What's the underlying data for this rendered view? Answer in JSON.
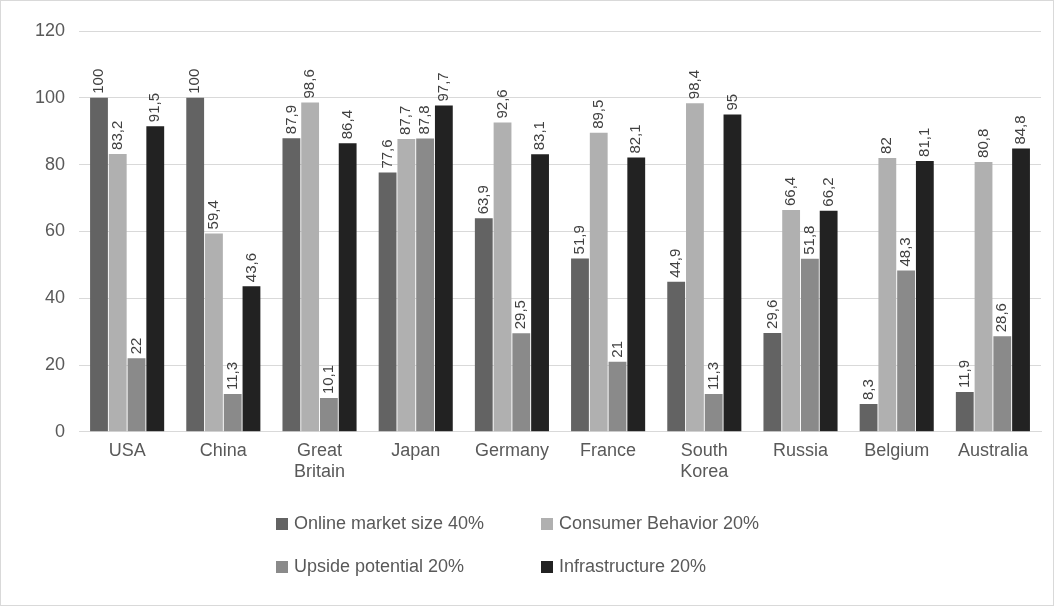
{
  "chart_data": {
    "type": "bar",
    "categories": [
      "USA",
      "China",
      "Great Britain",
      "Japan",
      "Germany",
      "France",
      "South Korea",
      "Russia",
      "Belgium",
      "Australia"
    ],
    "series": [
      {
        "name": "Online market size 40%",
        "color": "#636363",
        "values": [
          100,
          100,
          87.9,
          77.6,
          63.9,
          51.9,
          44.9,
          29.6,
          8.3,
          11.9
        ],
        "value_labels": [
          "100",
          "100",
          "87,9",
          "77,6",
          "63,9",
          "51,9",
          "44,9",
          "29,6",
          "8,3",
          "11,9"
        ]
      },
      {
        "name": "Consumer Behavior 20%",
        "color": "#b0b0b0",
        "values": [
          83.2,
          59.4,
          98.6,
          87.7,
          92.6,
          89.5,
          98.4,
          66.4,
          82,
          80.8
        ],
        "value_labels": [
          "83,2",
          "59,4",
          "98,6",
          "87,7",
          "92,6",
          "89,5",
          "98,4",
          "66,4",
          "82",
          "80,8"
        ]
      },
      {
        "name": "Upside potential 20%",
        "color": "#8a8a8a",
        "values": [
          22,
          11.3,
          10.1,
          87.8,
          29.5,
          21,
          11.3,
          51.8,
          48.3,
          28.6
        ],
        "value_labels": [
          "22",
          "11,3",
          "10,1",
          "87,8",
          "29,5",
          "21",
          "11,3",
          "51,8",
          "48,3",
          "28,6"
        ]
      },
      {
        "name": "Infrastructure 20%",
        "color": "#222222",
        "values": [
          91.5,
          43.6,
          86.4,
          97.7,
          83.1,
          82.1,
          95,
          66.2,
          81.1,
          84.8
        ],
        "value_labels": [
          "91,5",
          "43,6",
          "86,4",
          "97,7",
          "83,1",
          "82,1",
          "95",
          "66,2",
          "81,1",
          "84,8"
        ]
      }
    ],
    "ylim": [
      0,
      120
    ],
    "yticks": [
      0,
      20,
      40,
      60,
      80,
      100,
      120
    ],
    "grid": "y",
    "legend": "bottom"
  }
}
